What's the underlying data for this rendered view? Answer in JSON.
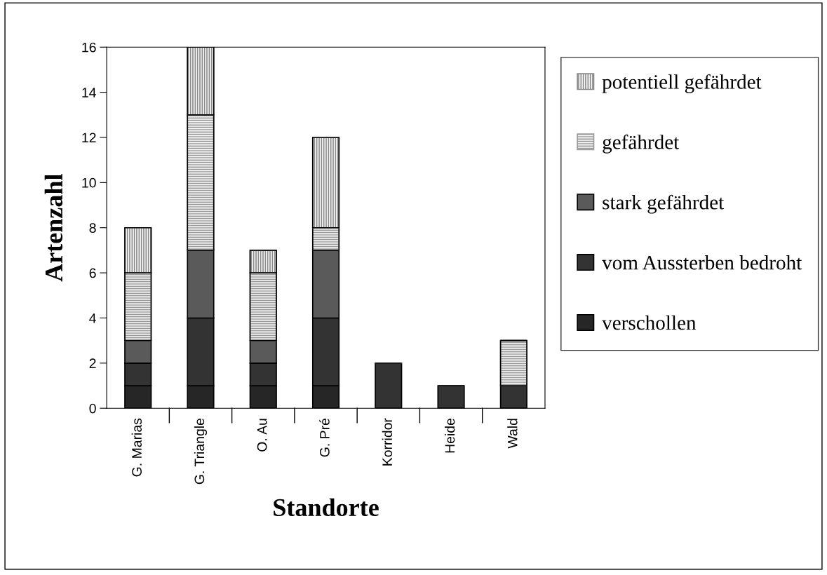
{
  "chart_data": {
    "type": "bar",
    "stacked": true,
    "xlabel": "Standorte",
    "ylabel": "Artenzahl",
    "categories": [
      "G. Marias",
      "G. Triangle",
      "O. Au",
      "G. Pré",
      "Korridor",
      "Heide",
      "Wald"
    ],
    "series": [
      {
        "name": "verschollen",
        "color": "#262626",
        "values": [
          1,
          1,
          1,
          1,
          0,
          0,
          0
        ]
      },
      {
        "name": "vom Aussterben bedroht",
        "color": "#333333",
        "values": [
          1,
          3,
          1,
          3,
          2,
          1,
          1
        ]
      },
      {
        "name": "stark gefährdet",
        "color": "#5a5a5a",
        "values": [
          1,
          3,
          1,
          3,
          0,
          0,
          0
        ]
      },
      {
        "name": "gefährdet",
        "color": "#9a9a9a",
        "values": [
          3,
          6,
          3,
          1,
          0,
          0,
          2
        ]
      },
      {
        "name": "potentiell gefährdet",
        "color": "#8a8a8a",
        "values": [
          2,
          3,
          1,
          4,
          0,
          0,
          0
        ]
      }
    ],
    "ylim": [
      0,
      16
    ],
    "yticks": [
      0,
      2,
      4,
      6,
      8,
      10,
      12,
      14,
      16
    ],
    "grid": false,
    "legend": "right"
  }
}
